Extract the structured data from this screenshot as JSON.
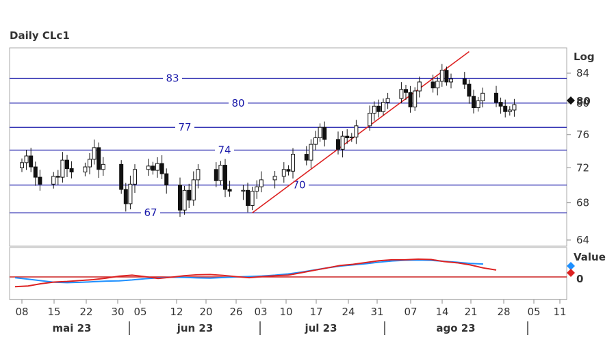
{
  "chart_data": [
    {
      "type": "candlestick",
      "title": "Daily CLc1",
      "scale": "log",
      "scale_label": "Log",
      "y_ticks": [
        64,
        68,
        72,
        76,
        80,
        84
      ],
      "ylim": [
        63,
        87
      ],
      "last_price_label": "80",
      "x_tick_labels": [
        "08",
        "15",
        "22",
        "30",
        "05",
        "12",
        "20",
        "26",
        "03",
        "10",
        "17",
        "24",
        "31",
        "07",
        "14",
        "21",
        "28",
        "05",
        "11"
      ],
      "month_labels": [
        "mai 23",
        "jun 23",
        "jul 23",
        "ago 23"
      ],
      "horizontal_levels": [
        {
          "label": "83",
          "value": 83.3
        },
        {
          "label": "80",
          "value": 80.0
        },
        {
          "label": "77",
          "value": 76.9
        },
        {
          "label": "74",
          "value": 74.1
        },
        {
          "label": "70",
          "value": 70.0
        },
        {
          "label": "67",
          "value": 66.9
        }
      ],
      "trendline": {
        "from": [
          "2023-06-28",
          66.9
        ],
        "to": [
          "2023-08-15",
          87
        ]
      },
      "dates": [
        "2023-05-08",
        "2023-05-09",
        "2023-05-10",
        "2023-05-11",
        "2023-05-12",
        "2023-05-15",
        "2023-05-16",
        "2023-05-17",
        "2023-05-18",
        "2023-05-19",
        "2023-05-22",
        "2023-05-23",
        "2023-05-24",
        "2023-05-25",
        "2023-05-26",
        "2023-05-30",
        "2023-05-31",
        "2023-06-01",
        "2023-06-02",
        "2023-06-05",
        "2023-06-06",
        "2023-06-07",
        "2023-06-08",
        "2023-06-09",
        "2023-06-12",
        "2023-06-13",
        "2023-06-14",
        "2023-06-15",
        "2023-06-16",
        "2023-06-20",
        "2023-06-21",
        "2023-06-22",
        "2023-06-23",
        "2023-06-26",
        "2023-06-27",
        "2023-06-28",
        "2023-06-29",
        "2023-06-30",
        "2023-07-03",
        "2023-07-05",
        "2023-07-06",
        "2023-07-07",
        "2023-07-10",
        "2023-07-11",
        "2023-07-12",
        "2023-07-13",
        "2023-07-14",
        "2023-07-17",
        "2023-07-18",
        "2023-07-19",
        "2023-07-20",
        "2023-07-21",
        "2023-07-24",
        "2023-07-25",
        "2023-07-26",
        "2023-07-27",
        "2023-07-28",
        "2023-07-31",
        "2023-08-01",
        "2023-08-02",
        "2023-08-03",
        "2023-08-04",
        "2023-08-07",
        "2023-08-08",
        "2023-08-09",
        "2023-08-10",
        "2023-08-11",
        "2023-08-14",
        "2023-08-15",
        "2023-08-16",
        "2023-08-17",
        "2023-08-18",
        "2023-08-21",
        "2023-08-22",
        "2023-08-23",
        "2023-08-24",
        "2023-08-25"
      ],
      "close": [
        72.6,
        73.4,
        72.1,
        70.9,
        70.1,
        71.0,
        70.9,
        72.9,
        71.9,
        71.5,
        72.1,
        73.0,
        74.4,
        71.8,
        72.4,
        69.5,
        67.9,
        70.1,
        71.8,
        72.2,
        71.7,
        72.5,
        71.3,
        70.0,
        67.2,
        69.4,
        68.3,
        70.6,
        71.8,
        70.5,
        72.3,
        69.5,
        69.3,
        69.4,
        67.7,
        69.3,
        69.8,
        70.6,
        71.0,
        71.8,
        71.6,
        73.6,
        72.9,
        74.8,
        75.6,
        76.9,
        75.4,
        74.2,
        75.8,
        75.6,
        75.7,
        77.1,
        78.7,
        79.6,
        78.9,
        80.1,
        80.6,
        81.8,
        81.4,
        79.5,
        81.6,
        82.8,
        82.0,
        82.9,
        84.4,
        82.8,
        83.2,
        82.5,
        80.9,
        79.4,
        80.3,
        81.3,
        80.1,
        79.6,
        78.9,
        79.1,
        79.8
      ],
      "oscillator": {
        "legend_label": "Value",
        "zero_label": "0",
        "series": [
          {
            "color": "#1e90ff",
            "values": [
              -0.5,
              -1.5,
              -2.5,
              -3.5,
              -3.8,
              -3.6,
              -3.2,
              -2.8,
              -2.6,
              -2.0,
              -1.2,
              -0.6,
              -0.2,
              -0.3,
              -0.6,
              -0.8,
              -0.4,
              0,
              0.3,
              0.6,
              1.2,
              2.0,
              3.2,
              4.6,
              6.0,
              7.2,
              8.0,
              8.8,
              9.8,
              10.6,
              11.1,
              11.2,
              11.0,
              10.4,
              9.8,
              9.0,
              8.6
            ]
          },
          {
            "color": "#dd2222",
            "values": [
              -6.5,
              -6.0,
              -4.5,
              -3.4,
              -3.0,
              -2.4,
              -1.8,
              -0.8,
              0.5,
              1.2,
              0.2,
              -1.0,
              -0.2,
              0.8,
              1.4,
              1.6,
              1.0,
              0.2,
              -0.5,
              0.2,
              0.8,
              1.2,
              2.8,
              4.4,
              6.0,
              7.6,
              8.4,
              9.6,
              10.8,
              11.4,
              11.4,
              11.8,
              11.6,
              10.2,
              9.4,
              8.0,
              6.0,
              4.6
            ]
          }
        ]
      }
    }
  ]
}
